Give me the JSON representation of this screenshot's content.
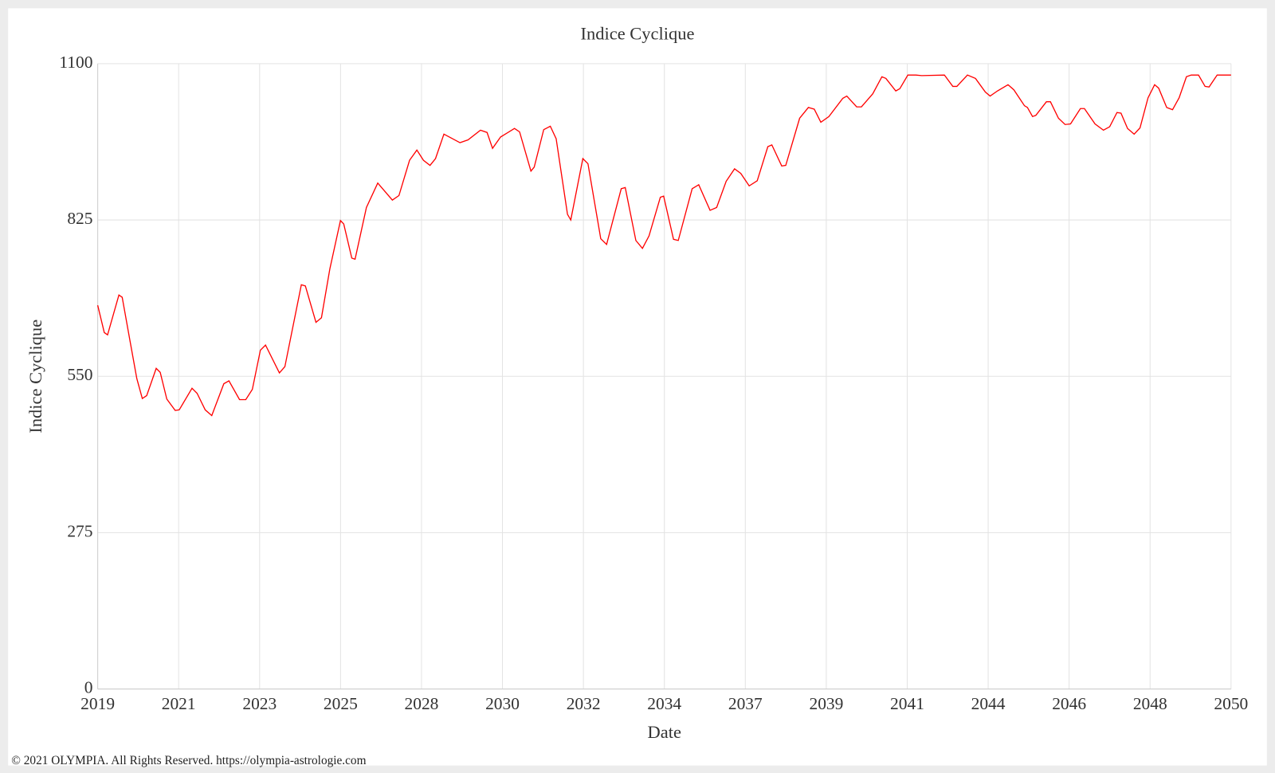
{
  "chart_data": {
    "type": "line",
    "title": "Indice Cyclique",
    "x_label": "Date",
    "y_label": "Indice Cyclique",
    "xlim": [
      2019,
      2050
    ],
    "xticks": [
      {
        "value": 2019,
        "label": "2019"
      },
      {
        "value": 2021.214,
        "label": "2021"
      },
      {
        "value": 2023.429,
        "label": "2023"
      },
      {
        "value": 2025.643,
        "label": "2025"
      },
      {
        "value": 2027.857,
        "label": "2028"
      },
      {
        "value": 2030.071,
        "label": "2030"
      },
      {
        "value": 2032.286,
        "label": "2032"
      },
      {
        "value": 2034.5,
        "label": "2034"
      },
      {
        "value": 2036.714,
        "label": "2037"
      },
      {
        "value": 2038.929,
        "label": "2039"
      },
      {
        "value": 2041.143,
        "label": "2041"
      },
      {
        "value": 2043.357,
        "label": "2044"
      },
      {
        "value": 2045.571,
        "label": "2046"
      },
      {
        "value": 2047.786,
        "label": "2048"
      },
      {
        "value": 2050,
        "label": "2050"
      }
    ],
    "ylim": [
      0,
      1100
    ],
    "yticks": [
      0,
      275,
      550,
      825,
      1100
    ],
    "grid": true,
    "x": [
      2019.0,
      2019.18,
      2019.27,
      2019.58,
      2019.67,
      2019.89,
      2020.07,
      2020.22,
      2020.34,
      2020.6,
      2020.71,
      2020.89,
      2021.12,
      2021.23,
      2021.58,
      2021.72,
      2021.94,
      2022.12,
      2022.45,
      2022.59,
      2022.88,
      2023.05,
      2023.23,
      2023.45,
      2023.59,
      2023.97,
      2024.12,
      2024.57,
      2024.68,
      2024.97,
      2025.12,
      2025.35,
      2025.64,
      2025.73,
      2025.95,
      2026.04,
      2026.35,
      2026.66,
      2027.06,
      2027.24,
      2027.53,
      2027.73,
      2027.91,
      2028.09,
      2028.24,
      2028.47,
      2028.91,
      2029.13,
      2029.47,
      2029.65,
      2029.8,
      2030.02,
      2030.4,
      2030.54,
      2030.85,
      2030.94,
      2031.2,
      2031.38,
      2031.54,
      2031.85,
      2031.94,
      2032.27,
      2032.41,
      2032.76,
      2032.92,
      2033.32,
      2033.43,
      2033.72,
      2033.9,
      2034.08,
      2034.39,
      2034.48,
      2034.75,
      2034.88,
      2035.26,
      2035.44,
      2035.75,
      2035.93,
      2036.19,
      2036.42,
      2036.59,
      2036.82,
      2037.04,
      2037.33,
      2037.44,
      2037.71,
      2037.82,
      2038.2,
      2038.44,
      2038.6,
      2038.78,
      2039.0,
      2039.38,
      2039.49,
      2039.76,
      2039.89,
      2040.2,
      2040.45,
      2040.56,
      2040.83,
      2040.94,
      2041.16,
      2041.38,
      2041.54,
      2042.16,
      2042.39,
      2042.5,
      2042.79,
      2043.01,
      2043.28,
      2043.41,
      2043.61,
      2043.9,
      2044.06,
      2044.35,
      2044.43,
      2044.57,
      2044.66,
      2044.95,
      2045.06,
      2045.28,
      2045.46,
      2045.61,
      2045.88,
      2045.99,
      2046.28,
      2046.51,
      2046.68,
      2046.88,
      2046.99,
      2047.17,
      2047.35,
      2047.51,
      2047.73,
      2047.91,
      2048.02,
      2048.24,
      2048.4,
      2048.58,
      2048.78,
      2048.91,
      2049.11,
      2049.29,
      2049.4,
      2049.62,
      2050.0
    ],
    "series": [
      {
        "name": "Indice Cyclique",
        "color": "#ff0000",
        "values": [
          675,
          627,
          623,
          693,
          689,
          610,
          546,
          511,
          516,
          564,
          557,
          510,
          490,
          491,
          529,
          520,
          491,
          481,
          537,
          542,
          509,
          509,
          527,
          596,
          605,
          556,
          567,
          711,
          709,
          645,
          653,
          739,
          824,
          818,
          758,
          756,
          847,
          890,
          860,
          868,
          930,
          948,
          930,
          921,
          933,
          976,
          961,
          966,
          983,
          979,
          951,
          971,
          986,
          980,
          911,
          918,
          984,
          990,
          968,
          835,
          825,
          933,
          924,
          792,
          782,
          880,
          882,
          789,
          775,
          797,
          865,
          867,
          791,
          789,
          880,
          887,
          842,
          847,
          893,
          915,
          907,
          885,
          894,
          954,
          957,
          920,
          921,
          1004,
          1023,
          1020,
          997,
          1007,
          1039,
          1043,
          1024,
          1024,
          1047,
          1077,
          1074,
          1052,
          1056,
          1080,
          1080,
          1079,
          1080,
          1060,
          1060,
          1080,
          1074,
          1050,
          1043,
          1052,
          1063,
          1054,
          1026,
          1023,
          1007,
          1009,
          1033,
          1033,
          1004,
          993,
          994,
          1021,
          1021,
          994,
          983,
          989,
          1014,
          1013,
          986,
          976,
          987,
          1040,
          1063,
          1057,
          1023,
          1019,
          1040,
          1077,
          1080,
          1080,
          1060,
          1059,
          1080,
          1080
        ]
      }
    ]
  },
  "footer": "© 2021 OLYMPIA. All Rights Reserved. https://olympia-astrologie.com"
}
